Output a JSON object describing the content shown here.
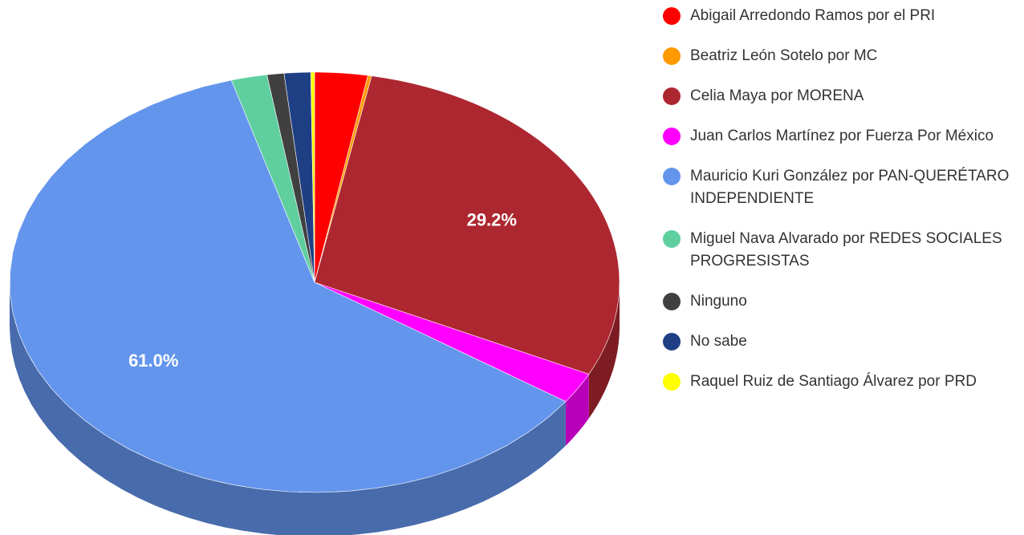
{
  "chart_data": {
    "type": "pie",
    "categories": [
      "Abigail Arredondo Ramos por el PRI",
      "Beatriz León Sotelo por MC",
      "Celia Maya por MORENA",
      "Juan Carlos Martínez por Fuerza Por México",
      "Mauricio Kuri González por PAN-QUERÉTARO INDEPENDIENTE",
      "Miguel Nava Alvarado por REDES SOCIALES PROGRESISTAS",
      "Ninguno",
      "No sabe",
      "Raquel Ruiz de Santiago Álvarez por PRD"
    ],
    "values": [
      2.8,
      0.2,
      29.2,
      2.4,
      61.0,
      1.9,
      0.9,
      1.4,
      0.2
    ],
    "value_labels": [
      null,
      null,
      "29.2%",
      null,
      "61.0%",
      null,
      null,
      null,
      null
    ],
    "colors": [
      "#ff0000",
      "#ff9900",
      "#ad2730",
      "#ff00ff",
      "#6495ed",
      "#5fcf9f",
      "#404040",
      "#1f3f85",
      "#ffff00"
    ],
    "legend": "right"
  }
}
